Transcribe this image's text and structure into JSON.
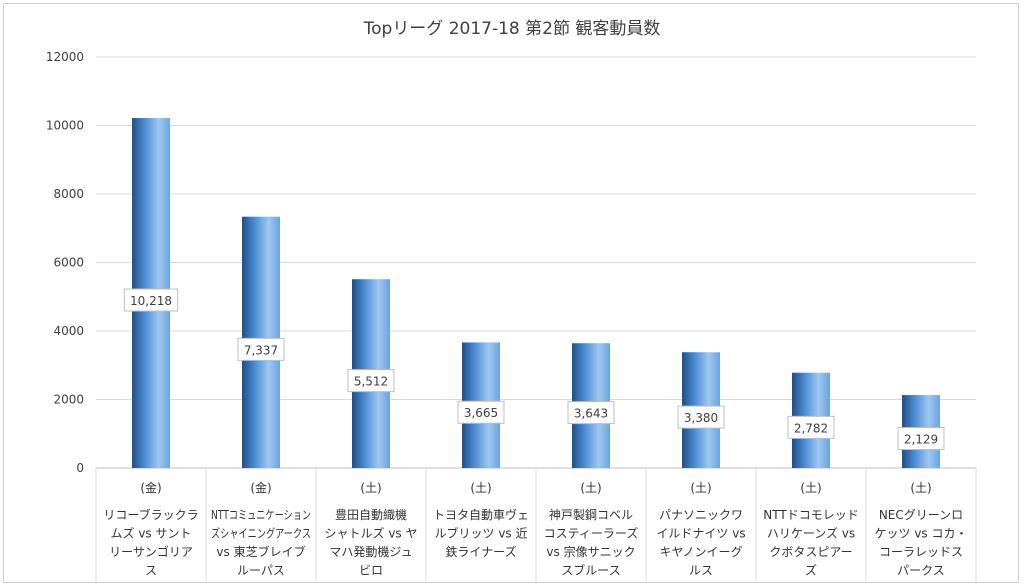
{
  "chart_data": {
    "type": "bar",
    "title": "Topリーグ 2017-18 第2節 観客動員数",
    "xlabel": "",
    "ylabel": "",
    "ylim": [
      0,
      12000
    ],
    "yticks": [
      0,
      2000,
      4000,
      6000,
      8000,
      10000,
      12000
    ],
    "grid": true,
    "legend": "none",
    "categories": [
      {
        "day": "(金)",
        "lines": [
          "リコーブラックラ",
          "ムズ vs サント",
          "リーサンゴリア",
          "ス"
        ]
      },
      {
        "day": "(金)",
        "lines": [
          "NTTコミュニケーション",
          "ズシャイニングアークス",
          "vs 東芝ブレイブ",
          "ルーパス"
        ]
      },
      {
        "day": "(土)",
        "lines": [
          "豊田自動織機",
          "シャトルズ vs ヤ",
          "マハ発動機ジュ",
          "ビロ"
        ]
      },
      {
        "day": "(土)",
        "lines": [
          "トヨタ自動車ヴェ",
          "ルブリッツ vs 近",
          "鉄ライナーズ"
        ]
      },
      {
        "day": "(土)",
        "lines": [
          "神戸製鋼コベル",
          "コスティーラーズ",
          "vs 宗像サニック",
          "スブルース"
        ]
      },
      {
        "day": "(土)",
        "lines": [
          "パナソニックワ",
          "イルドナイツ vs",
          "キヤノンイーグ",
          "ルス"
        ]
      },
      {
        "day": "(土)",
        "lines": [
          "NTTドコモレッド",
          "ハリケーンズ vs",
          "クボタスピアー",
          "ズ"
        ]
      },
      {
        "day": "(土)",
        "lines": [
          "NECグリーンロ",
          "ケッツ vs コカ・",
          "コーラレッドス",
          "パークス"
        ]
      }
    ],
    "values": [
      10218,
      7337,
      5512,
      3665,
      3643,
      3380,
      2782,
      2129
    ],
    "data_labels": [
      "10,218",
      "7,337",
      "5,512",
      "3,665",
      "3,643",
      "3,380",
      "2,782",
      "2,129"
    ],
    "colors": {
      "bar_light": "#9fc7ef",
      "bar_mid": "#4f8fd6",
      "bar_dark": "#1f4f86",
      "grid": "#d9d9d9",
      "text": "#404040"
    }
  }
}
